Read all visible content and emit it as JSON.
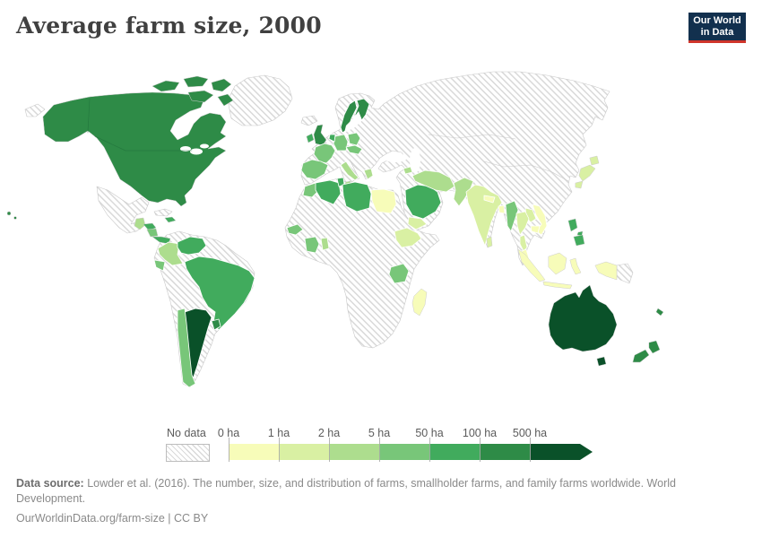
{
  "header": {
    "title": "Average farm size, 2000"
  },
  "logo": {
    "line1": "Our World",
    "line2": "in Data",
    "bg": "#12304e",
    "accent": "#d0352b"
  },
  "legend": {
    "no_data_label": "No data",
    "bins": [
      {
        "label": "0 ha",
        "color": "#f7fcb9"
      },
      {
        "label": "1 ha",
        "color": "#d9f0a3"
      },
      {
        "label": "2 ha",
        "color": "#addd8e"
      },
      {
        "label": "5 ha",
        "color": "#78c679"
      },
      {
        "label": "50 ha",
        "color": "#41ab5d"
      },
      {
        "label": "100 ha",
        "color": "#2e8b47"
      },
      {
        "label": "500 ha",
        "color": "#0a5129"
      }
    ]
  },
  "footer": {
    "source_label": "Data source:",
    "source_text": " Lowder et al. (2016). The number, size, and distribution of farms, smallholder farms, and family farms worldwide. World Development.",
    "note": "OurWorldinData.org/farm-size | CC BY"
  },
  "map": {
    "palette": {
      "bin0": "#f7fcb9",
      "bin1": "#d9f0a3",
      "bin2": "#addd8e",
      "bin3": "#78c679",
      "bin4": "#41ab5d",
      "bin5": "#2e8b47",
      "bin6": "#0a5129"
    },
    "region_fills": {
      "northamerica-mainland": "bin5",
      "arctic-islands": "bin5",
      "hawaii": "bin5",
      "greenland": "nodata",
      "chukotka-wrap": "nodata",
      "iceland": "nodata",
      "mexico": "nodata",
      "cuba": "nodata",
      "dominican-republic": "bin4",
      "guatemala": "bin2",
      "honduras": "bin4",
      "nicaragua": "bin3",
      "panama": "bin4",
      "south-america-base": "nodata",
      "colombia": "bin2",
      "venezuela": "bin4",
      "ecuador": "bin3",
      "brazil": "bin4",
      "argentina": "bin6",
      "chile": "bin3",
      "uruguay": "bin5",
      "eurasia-base": "nodata",
      "uk": "bin5",
      "ireland": "bin4",
      "sweden": "bin5",
      "finland": "bin5",
      "denmark": "bin4",
      "germany": "bin3",
      "benelux": "bin4",
      "france": "bin3",
      "iberia": "bin3",
      "poland": "bin3",
      "central-europe": "bin3",
      "italy": "bin2",
      "greece": "bin2",
      "syria": "bin2",
      "saudi-arabia": "bin4",
      "yemen": "bin1",
      "iran": "bin2",
      "pakistan": "bin2",
      "india": "bin1",
      "nepal": "bin0",
      "bangladesh": "bin0",
      "sri-lanka": "bin1",
      "myanmar": "bin3",
      "thailand": "bin1",
      "laos": "bin1",
      "vietnam": "bin0",
      "cambodia": "bin0",
      "malay-peninsula": "bin0",
      "japan": "bin1",
      "philippines": "bin4",
      "indonesia": "bin0",
      "papua-new-guinea": "nodata",
      "africa-base": "nodata",
      "morocco": "bin3",
      "algeria": "bin4",
      "tunisia": "bin4",
      "libya": "bin4",
      "egypt": "bin0",
      "senegal": "bin3",
      "cote-divoire": "bin3",
      "ghana": "bin2",
      "ethiopia": "bin1",
      "tanzania": "bin3",
      "madagascar": "bin0",
      "australia": "bin6",
      "tasmania": "bin6",
      "new-zealand": "bin5",
      "new-caledonia": "bin5"
    }
  },
  "chart_data": {
    "type": "heatmap",
    "subtype": "choropleth-world-map",
    "title": "Average farm size, 2000",
    "unit": "hectares (ha)",
    "legend_bins": [
      "0 ha",
      "1 ha",
      "2 ha",
      "5 ha",
      "50 ha",
      "100 ha",
      "500 ha"
    ],
    "bin_colors": [
      "#f7fcb9",
      "#d9f0a3",
      "#addd8e",
      "#78c679",
      "#41ab5d",
      "#2e8b47",
      "#0a5129"
    ],
    "no_data": {
      "label": "No data",
      "style": "diagonal-hatch"
    },
    "legend_position": "bottom",
    "countries": [
      {
        "name": "United States",
        "bin": "100–500 ha"
      },
      {
        "name": "Canada",
        "bin": "100–500 ha"
      },
      {
        "name": "Greenland",
        "bin": "No data"
      },
      {
        "name": "Mexico",
        "bin": "No data"
      },
      {
        "name": "Guatemala",
        "bin": "2–5 ha"
      },
      {
        "name": "Honduras",
        "bin": "50–100 ha"
      },
      {
        "name": "Nicaragua",
        "bin": "5–50 ha"
      },
      {
        "name": "Panama",
        "bin": "50–100 ha"
      },
      {
        "name": "Cuba",
        "bin": "No data"
      },
      {
        "name": "Dominican Republic",
        "bin": "50–100 ha"
      },
      {
        "name": "Colombia",
        "bin": "2–5 ha"
      },
      {
        "name": "Venezuela",
        "bin": "50–100 ha"
      },
      {
        "name": "Ecuador",
        "bin": "5–50 ha"
      },
      {
        "name": "Peru",
        "bin": "No data"
      },
      {
        "name": "Brazil",
        "bin": "50–100 ha"
      },
      {
        "name": "Bolivia",
        "bin": "No data"
      },
      {
        "name": "Paraguay",
        "bin": "No data"
      },
      {
        "name": "Chile",
        "bin": "5–50 ha"
      },
      {
        "name": "Argentina",
        "bin": "500+ ha"
      },
      {
        "name": "Uruguay",
        "bin": "100–500 ha"
      },
      {
        "name": "United Kingdom",
        "bin": "100–500 ha"
      },
      {
        "name": "Ireland",
        "bin": "50–100 ha"
      },
      {
        "name": "Norway",
        "bin": "No data"
      },
      {
        "name": "Sweden",
        "bin": "100–500 ha"
      },
      {
        "name": "Finland",
        "bin": "100–500 ha"
      },
      {
        "name": "Denmark",
        "bin": "50–100 ha"
      },
      {
        "name": "Germany",
        "bin": "5–50 ha"
      },
      {
        "name": "France",
        "bin": "5–50 ha"
      },
      {
        "name": "Spain",
        "bin": "5–50 ha"
      },
      {
        "name": "Portugal",
        "bin": "5–50 ha"
      },
      {
        "name": "Poland",
        "bin": "5–50 ha"
      },
      {
        "name": "Italy",
        "bin": "2–5 ha"
      },
      {
        "name": "Greece",
        "bin": "2–5 ha"
      },
      {
        "name": "Russia",
        "bin": "No data"
      },
      {
        "name": "Ukraine",
        "bin": "No data"
      },
      {
        "name": "Turkey",
        "bin": "No data"
      },
      {
        "name": "Morocco",
        "bin": "5–50 ha"
      },
      {
        "name": "Algeria",
        "bin": "50–100 ha"
      },
      {
        "name": "Tunisia",
        "bin": "50–100 ha"
      },
      {
        "name": "Libya",
        "bin": "50–100 ha"
      },
      {
        "name": "Egypt",
        "bin": "0–1 ha"
      },
      {
        "name": "Senegal",
        "bin": "5–50 ha"
      },
      {
        "name": "Côte d'Ivoire",
        "bin": "5–50 ha"
      },
      {
        "name": "Ghana",
        "bin": "2–5 ha"
      },
      {
        "name": "Ethiopia",
        "bin": "1–2 ha"
      },
      {
        "name": "Tanzania",
        "bin": "5–50 ha"
      },
      {
        "name": "Madagascar",
        "bin": "0–1 ha"
      },
      {
        "name": "Saudi Arabia",
        "bin": "50–100 ha"
      },
      {
        "name": "Yemen",
        "bin": "1–2 ha"
      },
      {
        "name": "Syria",
        "bin": "2–5 ha"
      },
      {
        "name": "Iran",
        "bin": "2–5 ha"
      },
      {
        "name": "Afghanistan",
        "bin": "No data"
      },
      {
        "name": "Pakistan",
        "bin": "2–5 ha"
      },
      {
        "name": "India",
        "bin": "1–2 ha"
      },
      {
        "name": "Nepal",
        "bin": "0–1 ha"
      },
      {
        "name": "Bangladesh",
        "bin": "0–1 ha"
      },
      {
        "name": "Sri Lanka",
        "bin": "1–2 ha"
      },
      {
        "name": "Myanmar",
        "bin": "5–50 ha"
      },
      {
        "name": "Thailand",
        "bin": "1–2 ha"
      },
      {
        "name": "Laos",
        "bin": "1–2 ha"
      },
      {
        "name": "Vietnam",
        "bin": "0–1 ha"
      },
      {
        "name": "Cambodia",
        "bin": "0–1 ha"
      },
      {
        "name": "Malaysia",
        "bin": "0–1 ha"
      },
      {
        "name": "Indonesia",
        "bin": "0–1 ha"
      },
      {
        "name": "Philippines",
        "bin": "50–100 ha"
      },
      {
        "name": "China",
        "bin": "No data"
      },
      {
        "name": "Mongolia",
        "bin": "No data"
      },
      {
        "name": "Japan",
        "bin": "1–2 ha"
      },
      {
        "name": "South Korea",
        "bin": "No data"
      },
      {
        "name": "Papua New Guinea",
        "bin": "No data"
      },
      {
        "name": "Australia",
        "bin": "500+ ha"
      },
      {
        "name": "New Zealand",
        "bin": "100–500 ha"
      },
      {
        "name": "New Caledonia",
        "bin": "100–500 ha"
      }
    ]
  }
}
